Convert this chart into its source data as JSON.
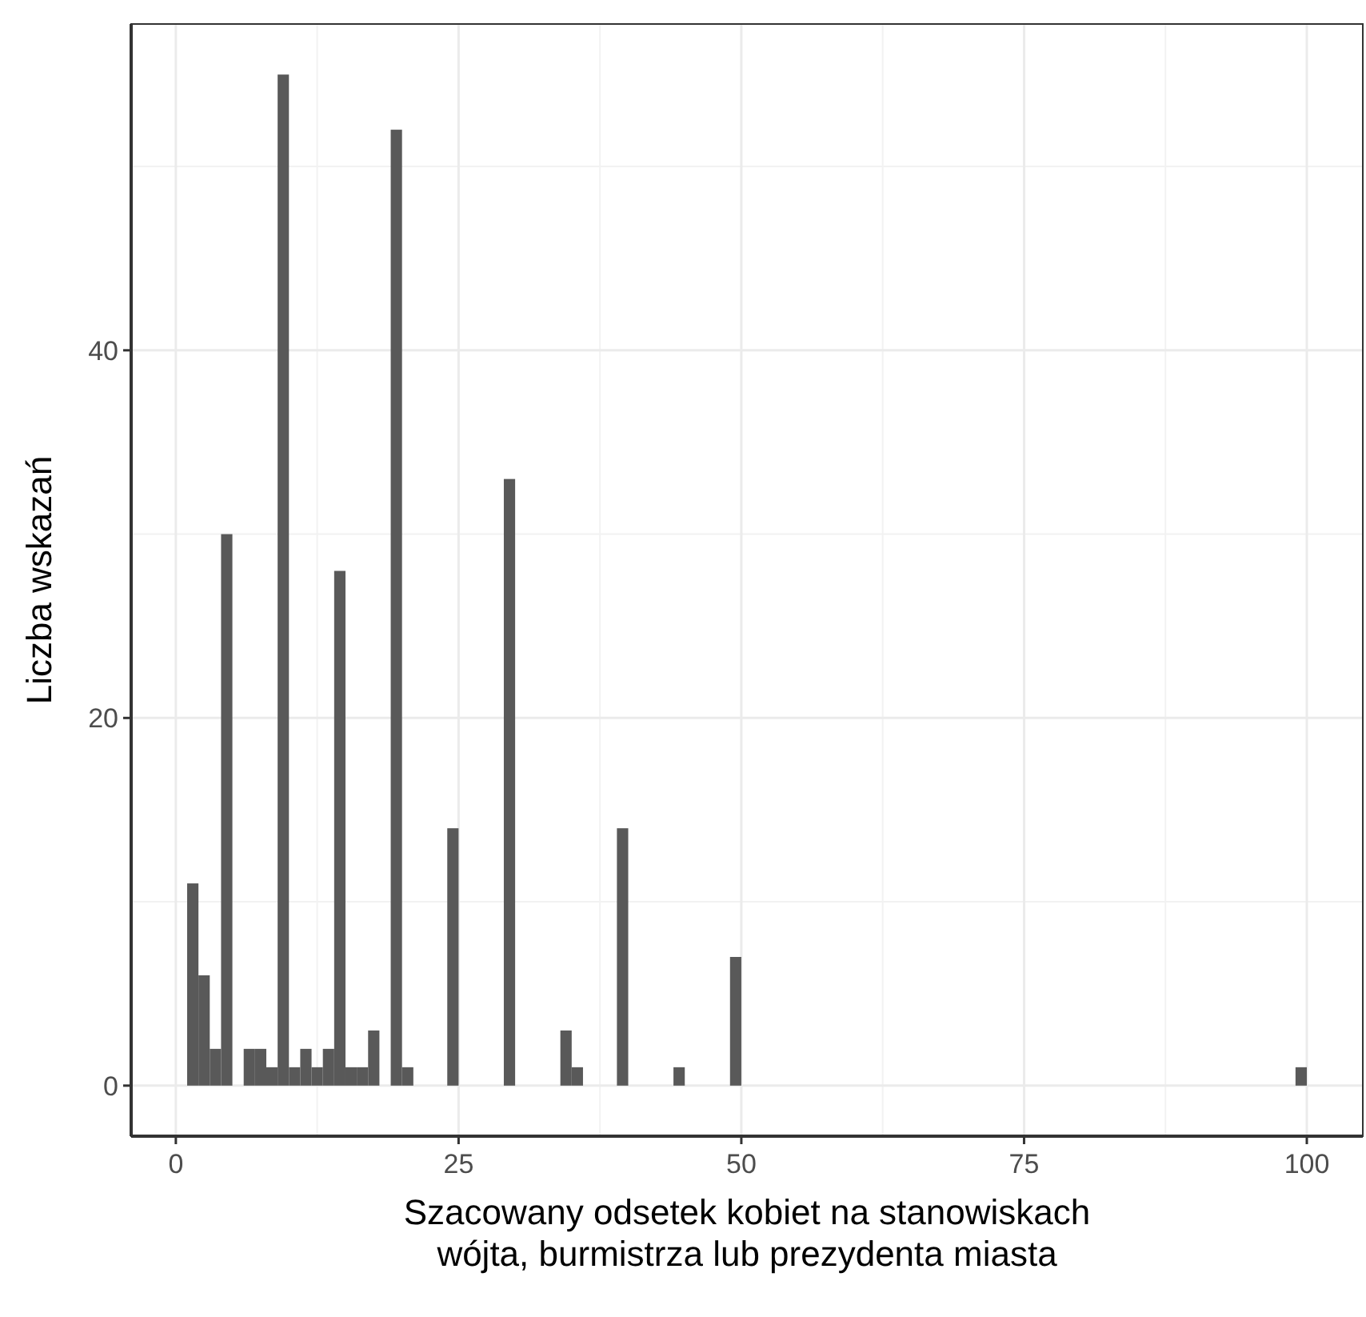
{
  "chart_data": {
    "type": "histogram",
    "xlabel": "Szacowany odsetek kobiet na stanowiskach\nwójta, burmistrza lub prezydenta miasta",
    "ylabel": "Liczba wskazań",
    "color": "#595959",
    "bins": [
      1,
      2,
      3,
      4,
      5,
      6,
      7,
      8,
      9,
      10,
      11,
      12,
      13,
      14,
      15,
      16,
      17,
      18,
      19,
      20,
      21,
      22,
      23,
      24,
      25,
      26,
      27,
      28,
      29,
      30,
      31,
      32,
      33,
      34,
      35,
      36,
      37,
      38,
      39,
      40,
      41,
      42,
      43,
      44,
      45,
      46,
      47,
      48,
      49,
      50,
      51,
      52,
      53,
      54,
      55,
      56,
      57,
      58,
      59,
      60,
      61,
      62,
      63,
      64,
      65,
      66,
      67,
      68,
      69,
      70,
      71,
      72,
      73,
      74,
      75,
      76,
      77,
      78,
      79,
      80,
      81,
      82,
      83,
      84,
      85,
      86,
      87,
      88,
      89,
      90,
      91,
      92,
      93,
      94,
      95,
      96,
      97,
      98,
      99,
      100
    ],
    "values": [
      11,
      6,
      2,
      30,
      0,
      2,
      2,
      1,
      55,
      1,
      2,
      1,
      2,
      28,
      1,
      1,
      3,
      0,
      52,
      1,
      0,
      0,
      0,
      14,
      0,
      0,
      0,
      0,
      33,
      0,
      0,
      0,
      0,
      3,
      1,
      0,
      0,
      0,
      14,
      0,
      0,
      0,
      0,
      1,
      0,
      0,
      0,
      0,
      7,
      0,
      0,
      0,
      0,
      0,
      0,
      0,
      0,
      0,
      0,
      0,
      0,
      0,
      0,
      0,
      0,
      0,
      0,
      0,
      0,
      0,
      0,
      0,
      0,
      0,
      0,
      0,
      0,
      0,
      0,
      0,
      0,
      0,
      0,
      0,
      0,
      0,
      0,
      0,
      0,
      0,
      0,
      0,
      0,
      0,
      0,
      0,
      0,
      0,
      1
    ],
    "xlim": [
      -3.95,
      104.95
    ],
    "xticks": [
      0,
      25,
      50,
      75,
      100
    ],
    "ylim": [
      -2.75,
      57.75
    ],
    "yticks": [
      0,
      20,
      40
    ],
    "grid": true
  }
}
